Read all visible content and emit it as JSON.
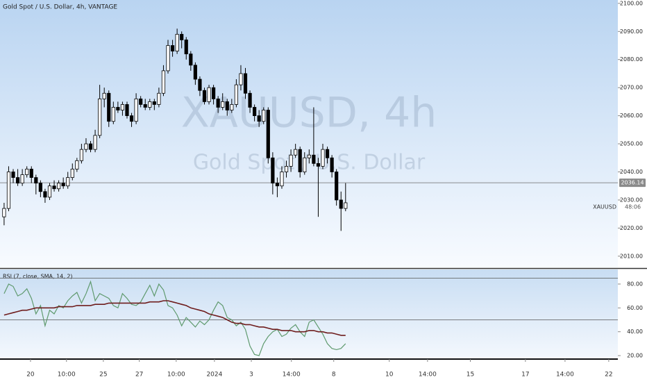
{
  "chart_data": [
    {
      "type": "candlestick",
      "title": "Gold Spot / U.S. Dollar, 4h, VANTAGE",
      "watermark": "XAUUSD, 4h",
      "watermark_subtitle": "Gold Spot / U.S. Dollar",
      "symbol": "XAUUSD",
      "countdown": "48:06",
      "last_price": 2036.14,
      "xlim": [
        -0.9,
        134.8
      ],
      "ylim": [
        2006,
        2101.2
      ],
      "yticks": [
        {
          "value": 2010,
          "label": "2010.00"
        },
        {
          "value": 2020,
          "label": "2020.00"
        },
        {
          "value": 2030,
          "label": "2030.00"
        },
        {
          "value": 2040,
          "label": "2040.00"
        },
        {
          "value": 2050,
          "label": "2050.00"
        },
        {
          "value": 2060,
          "label": "2060.00"
        },
        {
          "value": 2070,
          "label": "2070.00"
        },
        {
          "value": 2080,
          "label": "2080.00"
        },
        {
          "value": 2090,
          "label": "2090.00"
        },
        {
          "value": 2100,
          "label": "2100.00"
        }
      ],
      "up_color": "#ffffff",
      "down_color": "#000000",
      "open": [
        2024,
        2027,
        2040,
        2038,
        2036,
        2039,
        2041,
        2038,
        2036,
        2033,
        2031,
        2035,
        2034,
        2036,
        2035,
        2038,
        2041,
        2044,
        2048,
        2050,
        2048,
        2053,
        2066,
        2068,
        2058,
        2063,
        2062,
        2064,
        2060,
        2058,
        2066,
        2064,
        2063,
        2065,
        2064,
        2068,
        2076,
        2085,
        2083,
        2089,
        2087,
        2082,
        2078,
        2073,
        2069,
        2065,
        2070,
        2066,
        2063,
        2065,
        2062,
        2064,
        2071,
        2075,
        2068,
        2063,
        2060,
        2058,
        2062,
        2045,
        2036,
        2035,
        2040,
        2042,
        2046,
        2048,
        2040,
        2045,
        2046,
        2043,
        2042,
        2048,
        2045,
        2040,
        2030,
        2027
      ],
      "high": [
        2029,
        2042,
        2041,
        2041,
        2041,
        2042,
        2042,
        2039,
        2037,
        2034,
        2036,
        2037,
        2037,
        2038,
        2040,
        2043,
        2045,
        2050,
        2052,
        2051,
        2055,
        2071,
        2070,
        2069,
        2065,
        2065,
        2065,
        2065,
        2061,
        2068,
        2067,
        2066,
        2066,
        2066,
        2070,
        2078,
        2087,
        2087,
        2091,
        2090,
        2088,
        2083,
        2079,
        2074,
        2070,
        2071,
        2071,
        2067,
        2068,
        2066,
        2066,
        2073,
        2078,
        2077,
        2069,
        2064,
        2062,
        2063,
        2063,
        2047,
        2038,
        2042,
        2044,
        2048,
        2050,
        2049,
        2047,
        2048,
        2063,
        2045,
        2050,
        2049,
        2046,
        2041,
        2033,
        2036
      ],
      "low": [
        2021,
        2026,
        2036,
        2035,
        2035,
        2038,
        2036,
        2032,
        2031,
        2029,
        2030,
        2033,
        2033,
        2034,
        2034,
        2037,
        2040,
        2043,
        2047,
        2047,
        2047,
        2052,
        2063,
        2056,
        2057,
        2061,
        2060,
        2059,
        2056,
        2057,
        2063,
        2062,
        2062,
        2062,
        2063,
        2067,
        2075,
        2081,
        2082,
        2084,
        2080,
        2076,
        2071,
        2067,
        2064,
        2064,
        2064,
        2061,
        2062,
        2060,
        2061,
        2063,
        2069,
        2066,
        2061,
        2058,
        2056,
        2057,
        2043,
        2032,
        2031,
        2034,
        2038,
        2040,
        2045,
        2038,
        2039,
        2043,
        2042,
        2024,
        2041,
        2043,
        2038,
        2028,
        2019,
        2026
      ],
      "close": [
        2027,
        2040,
        2038,
        2036,
        2039,
        2041,
        2038,
        2036,
        2033,
        2031,
        2035,
        2034,
        2036,
        2035,
        2038,
        2041,
        2044,
        2048,
        2050,
        2048,
        2053,
        2066,
        2068,
        2058,
        2063,
        2062,
        2064,
        2060,
        2058,
        2066,
        2064,
        2063,
        2065,
        2064,
        2068,
        2076,
        2085,
        2083,
        2089,
        2087,
        2082,
        2078,
        2073,
        2069,
        2065,
        2070,
        2066,
        2063,
        2065,
        2062,
        2064,
        2071,
        2075,
        2068,
        2063,
        2060,
        2058,
        2062,
        2045,
        2036,
        2035,
        2040,
        2042,
        2046,
        2048,
        2040,
        2045,
        2046,
        2043,
        2042,
        2048,
        2045,
        2040,
        2030,
        2027,
        2029
      ]
    },
    {
      "type": "line",
      "title": "RSI (7, close, SMA, 14, 2)",
      "xlim": [
        -0.9,
        134.8
      ],
      "ylim": [
        17.1,
        92.2
      ],
      "yticks": [
        {
          "value": 20,
          "label": "20.00"
        },
        {
          "value": 40,
          "label": "40.00"
        },
        {
          "value": 60,
          "label": "60.00"
        },
        {
          "value": 80,
          "label": "80.00"
        }
      ],
      "levels": [
        85,
        50
      ],
      "xticks": [
        {
          "value": 5.8,
          "label": "20"
        },
        {
          "value": 13.7,
          "label": "10:00"
        },
        {
          "value": 21.8,
          "label": "25"
        },
        {
          "value": 29.7,
          "label": "27"
        },
        {
          "value": 37.8,
          "label": "10:00"
        },
        {
          "value": 46.2,
          "label": "2024"
        },
        {
          "value": 54.3,
          "label": "3"
        },
        {
          "value": 63.1,
          "label": "14:00"
        },
        {
          "value": 72.4,
          "label": "8"
        },
        {
          "value": 84.6,
          "label": "10"
        },
        {
          "value": 93,
          "label": "14:00"
        },
        {
          "value": 102.4,
          "label": "15"
        },
        {
          "value": 114.5,
          "label": "17"
        },
        {
          "value": 123.2,
          "label": "14:00"
        },
        {
          "value": 132.8,
          "label": "22"
        }
      ],
      "series": [
        {
          "color": "#5f9a6e",
          "values": [
            72,
            80,
            78,
            70,
            72,
            76,
            68,
            55,
            62,
            45,
            58,
            55,
            62,
            60,
            66,
            70,
            73,
            64,
            72,
            82,
            66,
            72,
            70,
            68,
            62,
            60,
            72,
            68,
            63,
            62,
            65,
            72,
            79,
            70,
            80,
            75,
            62,
            60,
            54,
            45,
            52,
            48,
            44,
            49,
            46,
            50,
            58,
            65,
            62,
            52,
            50,
            45,
            48,
            42,
            28,
            21,
            20,
            30,
            36,
            40,
            42,
            36,
            38,
            43,
            46,
            40,
            36,
            48,
            50,
            44,
            38,
            30,
            26,
            25,
            26,
            30
          ]
        },
        {
          "color": "#6e1c1c",
          "values": [
            54,
            55,
            56,
            57,
            58,
            58,
            59,
            60,
            60,
            60,
            60,
            60,
            61,
            61,
            61,
            61,
            62,
            62,
            62,
            62,
            63,
            63,
            63,
            64,
            64,
            64,
            64,
            64,
            64,
            64,
            64,
            64,
            65,
            65,
            65,
            66,
            66,
            65,
            64,
            63,
            62,
            60,
            59,
            58,
            57,
            55,
            54,
            53,
            52,
            50,
            48,
            47,
            47,
            46,
            46,
            45,
            44,
            44,
            43,
            42,
            42,
            41,
            41,
            41,
            40,
            40,
            40,
            41,
            41,
            40,
            40,
            39,
            39,
            38,
            37,
            37
          ]
        }
      ]
    }
  ]
}
